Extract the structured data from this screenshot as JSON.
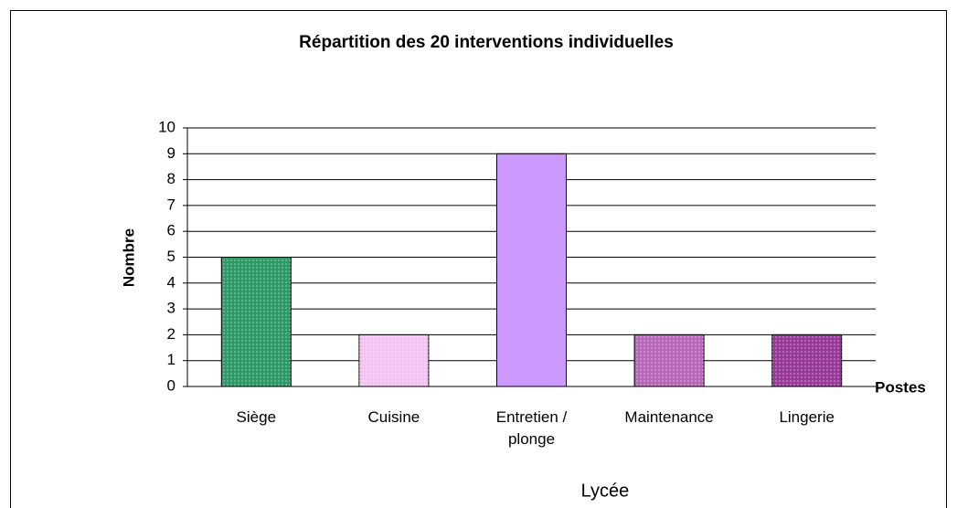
{
  "chart_data": {
    "type": "bar",
    "title": "Répartition des 20 interventions individuelles",
    "y_label": "Nombre",
    "x_label": "Postes",
    "subtitle": "Lycée",
    "categories": [
      "Siège",
      "Cuisine",
      "Entretien / plonge",
      "Maintenance",
      "Lingerie"
    ],
    "values": [
      5,
      2,
      9,
      2,
      2
    ],
    "colors": [
      "#2f9a66",
      "#f3c4f3",
      "#cc99ff",
      "#b868b8",
      "#9a3a9a"
    ],
    "ylim": [
      0,
      10
    ],
    "yticks": [
      0,
      1,
      2,
      3,
      4,
      5,
      6,
      7,
      8,
      9,
      10
    ],
    "grid": true
  }
}
